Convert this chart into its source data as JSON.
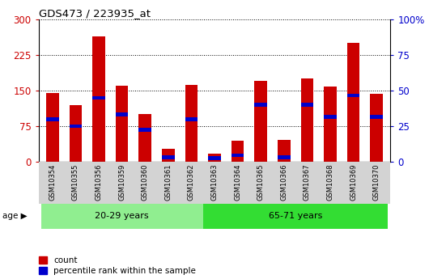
{
  "title": "GDS473 / 223935_at",
  "samples": [
    "GSM10354",
    "GSM10355",
    "GSM10356",
    "GSM10359",
    "GSM10360",
    "GSM10361",
    "GSM10362",
    "GSM10363",
    "GSM10364",
    "GSM10365",
    "GSM10366",
    "GSM10367",
    "GSM10368",
    "GSM10369",
    "GSM10370"
  ],
  "counts": [
    145,
    120,
    265,
    160,
    100,
    28,
    162,
    18,
    45,
    170,
    47,
    175,
    158,
    250,
    143
  ],
  "percentiles_left": [
    90,
    75,
    135,
    100,
    68,
    10,
    90,
    8,
    14,
    120,
    10,
    120,
    95,
    140,
    95
  ],
  "groups": [
    {
      "label": "20-29 years",
      "start": 0,
      "end": 7,
      "color": "#90ee90"
    },
    {
      "label": "65-71 years",
      "start": 7,
      "end": 15,
      "color": "#33dd33"
    }
  ],
  "ylim_left": [
    0,
    300
  ],
  "ylim_right": [
    0,
    100
  ],
  "yticks_left": [
    0,
    75,
    150,
    225,
    300
  ],
  "yticks_right": [
    0,
    25,
    50,
    75,
    100
  ],
  "ytick_labels_left": [
    "0",
    "75",
    "150",
    "225",
    "300"
  ],
  "ytick_labels_right": [
    "0",
    "25",
    "50",
    "75",
    "100%"
  ],
  "bar_color": "#cc0000",
  "percentile_color": "#0000cc",
  "bar_width": 0.55,
  "left_tick_color": "#cc0000",
  "right_tick_color": "#0000cc",
  "age_label": "age",
  "legend_count": "count",
  "legend_percentile": "percentile rank within the sample",
  "pct_bar_height": 8
}
